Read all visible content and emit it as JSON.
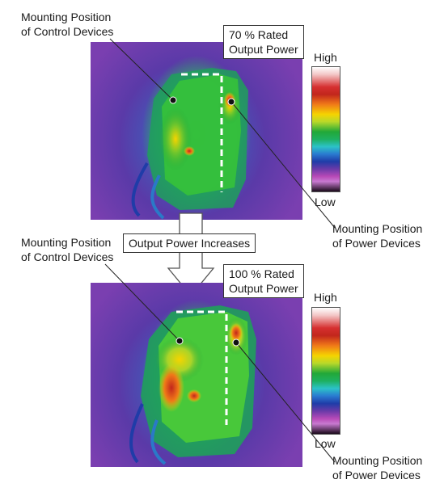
{
  "top_panel": {
    "control_label_line1": "Mounting Position",
    "control_label_line2": "of Control Devices",
    "power_box_line1": "70 % Rated",
    "power_box_line2": "Output Power",
    "power_label_line1": "Mounting Position",
    "power_label_line2": "of Power Devices",
    "scale_high": "High",
    "scale_low": "Low"
  },
  "middle": {
    "increase_label": "Output Power Increases"
  },
  "bottom_panel": {
    "control_label_line1": "Mounting Position",
    "control_label_line2": "of Control Devices",
    "power_box_line1": "100 % Rated",
    "power_box_line2": "Output Power",
    "power_label_line1": "Mounting Position",
    "power_label_line2": "of Power Devices",
    "scale_high": "High",
    "scale_low": "Low"
  },
  "colors": {
    "background": "#ffffff",
    "frame_purple": "#7a44b8",
    "hot": "#d63030",
    "warm": "#f5d400",
    "mid": "#22a838",
    "cool": "#2a7ad0"
  }
}
